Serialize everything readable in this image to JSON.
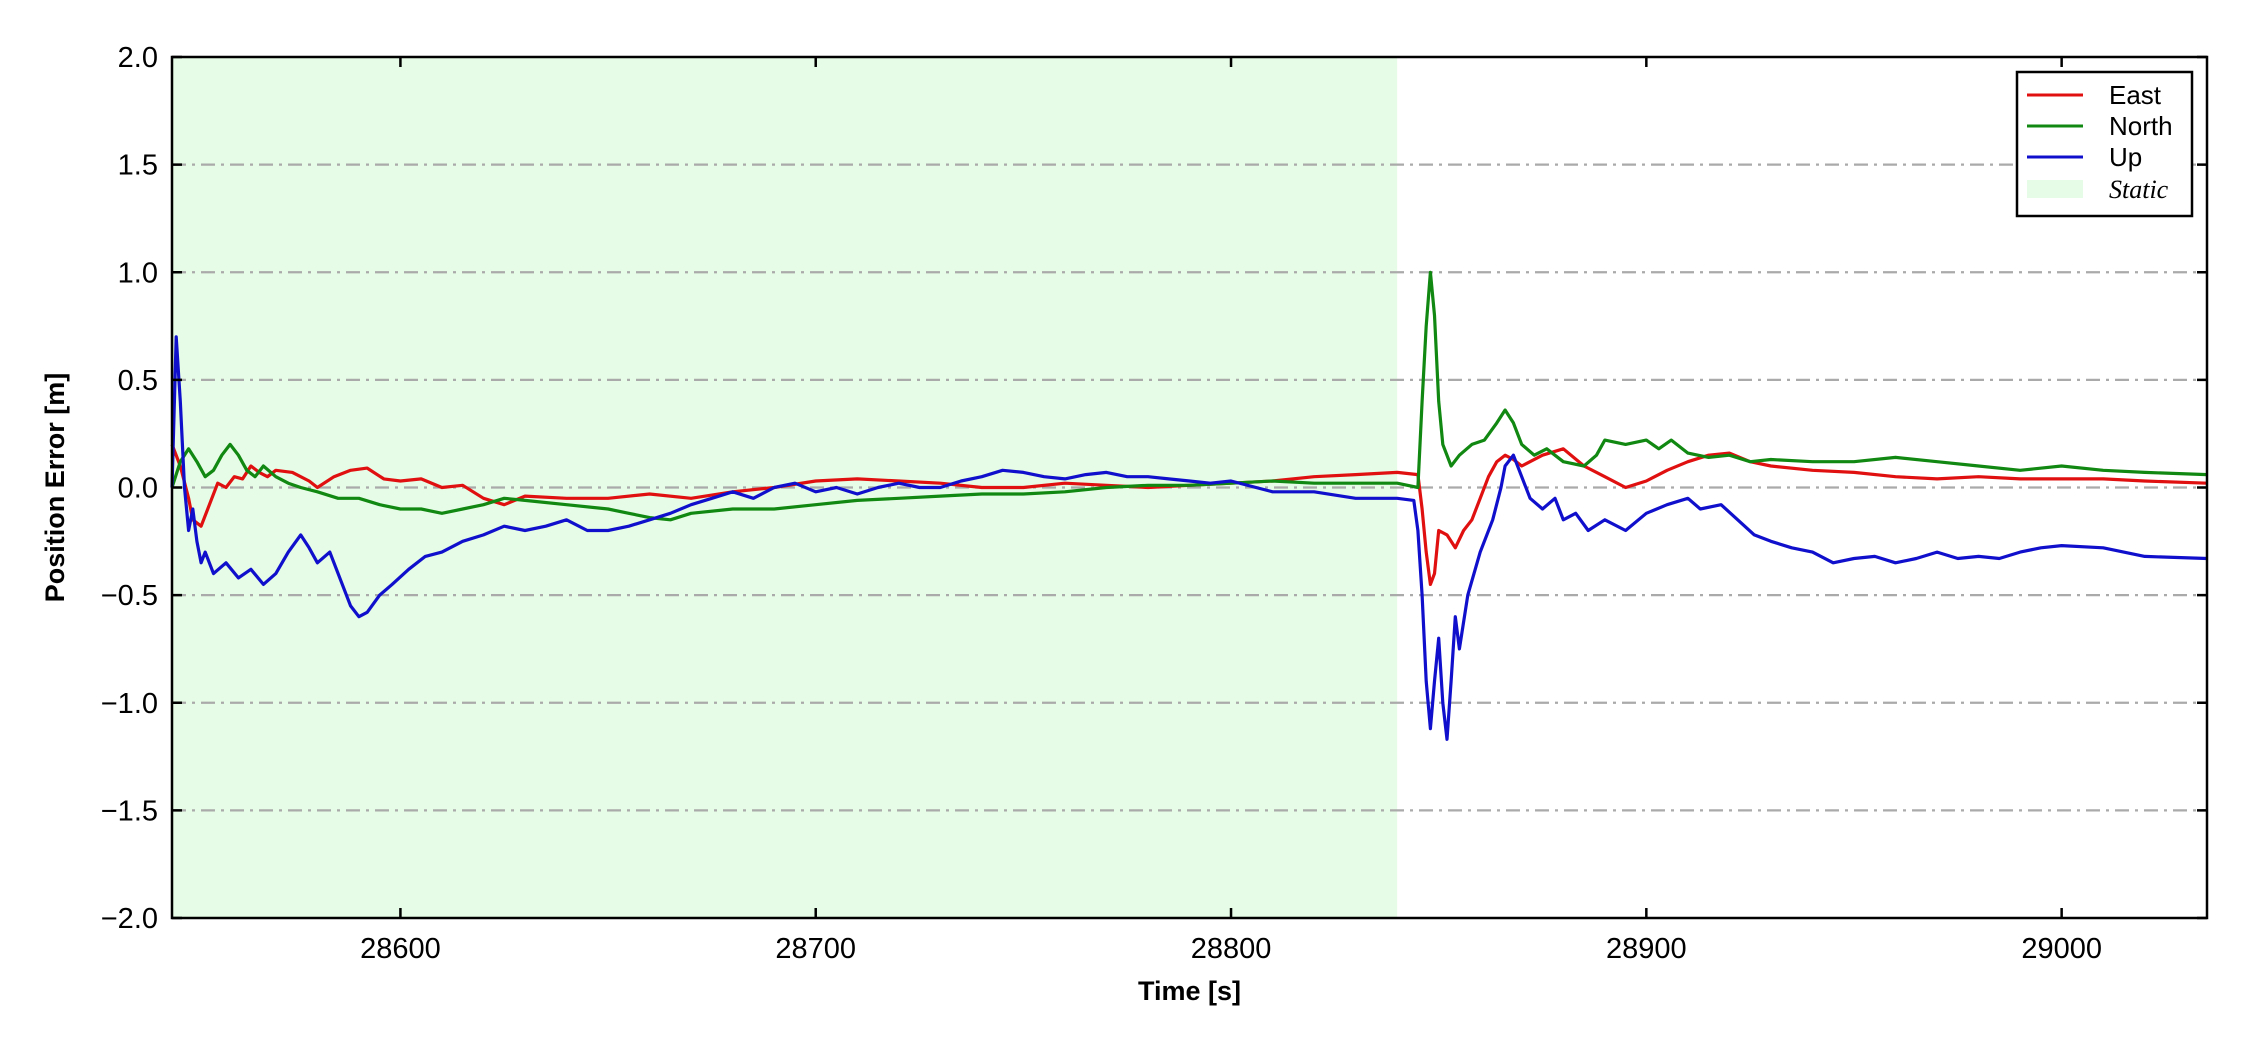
{
  "chart_data": {
    "type": "line",
    "xlabel": "Time [s]",
    "ylabel": "Position Error [m]",
    "xlim": [
      28545,
      29035
    ],
    "ylim": [
      -2.0,
      2.0
    ],
    "x_ticks": [
      28600,
      28700,
      28800,
      28900,
      29000
    ],
    "x_tick_labels": [
      "28600",
      "28700",
      "28800",
      "28900",
      "29000"
    ],
    "y_ticks": [
      -2.0,
      -1.5,
      -1.0,
      -0.5,
      0.0,
      0.5,
      1.0,
      1.5,
      2.0
    ],
    "y_tick_labels": [
      "−2.0",
      "−1.5",
      "−1.0",
      "−0.5",
      "0.0",
      "0.5",
      "1.0",
      "1.5",
      "2.0"
    ],
    "grid": "horizontal dash-dot",
    "legend_position": "top-right",
    "shaded_region": {
      "name": "Static",
      "x_range": [
        28545,
        28840
      ],
      "color": "#e6fce6"
    },
    "series": [
      {
        "name": "East",
        "color": "#e01010",
        "points": [
          [
            28545,
            0.2
          ],
          [
            28547,
            0.1
          ],
          [
            28549,
            -0.05
          ],
          [
            28550,
            -0.15
          ],
          [
            28552,
            -0.18
          ],
          [
            28554,
            -0.08
          ],
          [
            28556,
            0.02
          ],
          [
            28558,
            0.0
          ],
          [
            28560,
            0.05
          ],
          [
            28562,
            0.04
          ],
          [
            28564,
            0.1
          ],
          [
            28566,
            0.07
          ],
          [
            28568,
            0.05
          ],
          [
            28570,
            0.08
          ],
          [
            28574,
            0.07
          ],
          [
            28578,
            0.03
          ],
          [
            28580,
            0.0
          ],
          [
            28584,
            0.05
          ],
          [
            28588,
            0.08
          ],
          [
            28592,
            0.09
          ],
          [
            28596,
            0.04
          ],
          [
            28600,
            0.03
          ],
          [
            28605,
            0.04
          ],
          [
            28610,
            0.0
          ],
          [
            28615,
            0.01
          ],
          [
            28620,
            -0.05
          ],
          [
            28625,
            -0.08
          ],
          [
            28630,
            -0.04
          ],
          [
            28640,
            -0.05
          ],
          [
            28650,
            -0.05
          ],
          [
            28660,
            -0.03
          ],
          [
            28670,
            -0.05
          ],
          [
            28680,
            -0.02
          ],
          [
            28690,
            0.0
          ],
          [
            28700,
            0.03
          ],
          [
            28710,
            0.04
          ],
          [
            28720,
            0.03
          ],
          [
            28730,
            0.02
          ],
          [
            28740,
            0.0
          ],
          [
            28750,
            0.0
          ],
          [
            28760,
            0.02
          ],
          [
            28770,
            0.01
          ],
          [
            28780,
            0.0
          ],
          [
            28790,
            0.01
          ],
          [
            28800,
            0.02
          ],
          [
            28810,
            0.03
          ],
          [
            28820,
            0.05
          ],
          [
            28830,
            0.06
          ],
          [
            28840,
            0.07
          ],
          [
            28845,
            0.06
          ],
          [
            28846,
            -0.1
          ],
          [
            28847,
            -0.3
          ],
          [
            28848,
            -0.45
          ],
          [
            28849,
            -0.4
          ],
          [
            28850,
            -0.2
          ],
          [
            28852,
            -0.22
          ],
          [
            28854,
            -0.28
          ],
          [
            28856,
            -0.2
          ],
          [
            28858,
            -0.15
          ],
          [
            28860,
            -0.05
          ],
          [
            28862,
            0.05
          ],
          [
            28864,
            0.12
          ],
          [
            28866,
            0.15
          ],
          [
            28868,
            0.13
          ],
          [
            28870,
            0.1
          ],
          [
            28875,
            0.15
          ],
          [
            28880,
            0.18
          ],
          [
            28885,
            0.1
          ],
          [
            28890,
            0.05
          ],
          [
            28895,
            0.0
          ],
          [
            28900,
            0.03
          ],
          [
            28905,
            0.08
          ],
          [
            28910,
            0.12
          ],
          [
            28915,
            0.15
          ],
          [
            28920,
            0.16
          ],
          [
            28925,
            0.12
          ],
          [
            28930,
            0.1
          ],
          [
            28940,
            0.08
          ],
          [
            28950,
            0.07
          ],
          [
            28960,
            0.05
          ],
          [
            28970,
            0.04
          ],
          [
            28980,
            0.05
          ],
          [
            28990,
            0.04
          ],
          [
            29000,
            0.04
          ],
          [
            29010,
            0.04
          ],
          [
            29020,
            0.03
          ],
          [
            29035,
            0.02
          ]
        ]
      },
      {
        "name": "North",
        "color": "#118811",
        "points": [
          [
            28545,
            0.0
          ],
          [
            28547,
            0.12
          ],
          [
            28549,
            0.18
          ],
          [
            28551,
            0.12
          ],
          [
            28553,
            0.05
          ],
          [
            28555,
            0.08
          ],
          [
            28557,
            0.15
          ],
          [
            28559,
            0.2
          ],
          [
            28561,
            0.15
          ],
          [
            28563,
            0.08
          ],
          [
            28565,
            0.05
          ],
          [
            28567,
            0.1
          ],
          [
            28570,
            0.05
          ],
          [
            28573,
            0.02
          ],
          [
            28576,
            0.0
          ],
          [
            28580,
            -0.02
          ],
          [
            28585,
            -0.05
          ],
          [
            28590,
            -0.05
          ],
          [
            28595,
            -0.08
          ],
          [
            28600,
            -0.1
          ],
          [
            28605,
            -0.1
          ],
          [
            28610,
            -0.12
          ],
          [
            28615,
            -0.1
          ],
          [
            28620,
            -0.08
          ],
          [
            28625,
            -0.05
          ],
          [
            28630,
            -0.06
          ],
          [
            28640,
            -0.08
          ],
          [
            28650,
            -0.1
          ],
          [
            28655,
            -0.12
          ],
          [
            28660,
            -0.14
          ],
          [
            28665,
            -0.15
          ],
          [
            28670,
            -0.12
          ],
          [
            28680,
            -0.1
          ],
          [
            28690,
            -0.1
          ],
          [
            28700,
            -0.08
          ],
          [
            28710,
            -0.06
          ],
          [
            28720,
            -0.05
          ],
          [
            28730,
            -0.04
          ],
          [
            28740,
            -0.03
          ],
          [
            28750,
            -0.03
          ],
          [
            28760,
            -0.02
          ],
          [
            28770,
            0.0
          ],
          [
            28780,
            0.01
          ],
          [
            28790,
            0.01
          ],
          [
            28800,
            0.02
          ],
          [
            28810,
            0.03
          ],
          [
            28820,
            0.02
          ],
          [
            28830,
            0.02
          ],
          [
            28840,
            0.02
          ],
          [
            28845,
            0.0
          ],
          [
            28846,
            0.4
          ],
          [
            28847,
            0.75
          ],
          [
            28848,
            1.0
          ],
          [
            28849,
            0.8
          ],
          [
            28850,
            0.4
          ],
          [
            28851,
            0.2
          ],
          [
            28853,
            0.1
          ],
          [
            28855,
            0.15
          ],
          [
            28858,
            0.2
          ],
          [
            28861,
            0.22
          ],
          [
            28864,
            0.3
          ],
          [
            28866,
            0.36
          ],
          [
            28868,
            0.3
          ],
          [
            28870,
            0.2
          ],
          [
            28873,
            0.15
          ],
          [
            28876,
            0.18
          ],
          [
            28880,
            0.12
          ],
          [
            28885,
            0.1
          ],
          [
            28888,
            0.15
          ],
          [
            28890,
            0.22
          ],
          [
            28895,
            0.2
          ],
          [
            28900,
            0.22
          ],
          [
            28903,
            0.18
          ],
          [
            28906,
            0.22
          ],
          [
            28910,
            0.16
          ],
          [
            28915,
            0.14
          ],
          [
            28920,
            0.15
          ],
          [
            28925,
            0.12
          ],
          [
            28930,
            0.13
          ],
          [
            28940,
            0.12
          ],
          [
            28950,
            0.12
          ],
          [
            28960,
            0.14
          ],
          [
            28970,
            0.12
          ],
          [
            28980,
            0.1
          ],
          [
            28990,
            0.08
          ],
          [
            29000,
            0.1
          ],
          [
            29010,
            0.08
          ],
          [
            29020,
            0.07
          ],
          [
            29035,
            0.06
          ]
        ]
      },
      {
        "name": "Up",
        "color": "#1010cc",
        "points": [
          [
            28545,
            0.0
          ],
          [
            28546,
            0.7
          ],
          [
            28547,
            0.4
          ],
          [
            28548,
            0.0
          ],
          [
            28549,
            -0.2
          ],
          [
            28550,
            -0.1
          ],
          [
            28551,
            -0.25
          ],
          [
            28552,
            -0.35
          ],
          [
            28553,
            -0.3
          ],
          [
            28555,
            -0.4
          ],
          [
            28558,
            -0.35
          ],
          [
            28561,
            -0.42
          ],
          [
            28564,
            -0.38
          ],
          [
            28567,
            -0.45
          ],
          [
            28570,
            -0.4
          ],
          [
            28573,
            -0.3
          ],
          [
            28576,
            -0.22
          ],
          [
            28578,
            -0.28
          ],
          [
            28580,
            -0.35
          ],
          [
            28583,
            -0.3
          ],
          [
            28586,
            -0.45
          ],
          [
            28588,
            -0.55
          ],
          [
            28590,
            -0.6
          ],
          [
            28592,
            -0.58
          ],
          [
            28595,
            -0.5
          ],
          [
            28598,
            -0.45
          ],
          [
            28602,
            -0.38
          ],
          [
            28606,
            -0.32
          ],
          [
            28610,
            -0.3
          ],
          [
            28615,
            -0.25
          ],
          [
            28620,
            -0.22
          ],
          [
            28625,
            -0.18
          ],
          [
            28630,
            -0.2
          ],
          [
            28635,
            -0.18
          ],
          [
            28640,
            -0.15
          ],
          [
            28645,
            -0.2
          ],
          [
            28650,
            -0.2
          ],
          [
            28655,
            -0.18
          ],
          [
            28660,
            -0.15
          ],
          [
            28665,
            -0.12
          ],
          [
            28670,
            -0.08
          ],
          [
            28675,
            -0.05
          ],
          [
            28680,
            -0.02
          ],
          [
            28685,
            -0.05
          ],
          [
            28690,
            0.0
          ],
          [
            28695,
            0.02
          ],
          [
            28700,
            -0.02
          ],
          [
            28705,
            0.0
          ],
          [
            28710,
            -0.03
          ],
          [
            28715,
            0.0
          ],
          [
            28720,
            0.02
          ],
          [
            28725,
            0.0
          ],
          [
            28730,
            0.0
          ],
          [
            28735,
            0.03
          ],
          [
            28740,
            0.05
          ],
          [
            28745,
            0.08
          ],
          [
            28750,
            0.07
          ],
          [
            28755,
            0.05
          ],
          [
            28760,
            0.04
          ],
          [
            28765,
            0.06
          ],
          [
            28770,
            0.07
          ],
          [
            28775,
            0.05
          ],
          [
            28780,
            0.05
          ],
          [
            28785,
            0.04
          ],
          [
            28790,
            0.03
          ],
          [
            28795,
            0.02
          ],
          [
            28800,
            0.03
          ],
          [
            28810,
            -0.02
          ],
          [
            28820,
            -0.02
          ],
          [
            28830,
            -0.05
          ],
          [
            28840,
            -0.05
          ],
          [
            28844,
            -0.06
          ],
          [
            28845,
            -0.2
          ],
          [
            28846,
            -0.5
          ],
          [
            28847,
            -0.9
          ],
          [
            28848,
            -1.12
          ],
          [
            28849,
            -0.9
          ],
          [
            28850,
            -0.7
          ],
          [
            28851,
            -1.0
          ],
          [
            28852,
            -1.17
          ],
          [
            28853,
            -0.9
          ],
          [
            28854,
            -0.6
          ],
          [
            28855,
            -0.75
          ],
          [
            28857,
            -0.5
          ],
          [
            28860,
            -0.3
          ],
          [
            28863,
            -0.15
          ],
          [
            28865,
            0.0
          ],
          [
            28866,
            0.1
          ],
          [
            28868,
            0.15
          ],
          [
            28870,
            0.05
          ],
          [
            28872,
            -0.05
          ],
          [
            28875,
            -0.1
          ],
          [
            28878,
            -0.05
          ],
          [
            28880,
            -0.15
          ],
          [
            28883,
            -0.12
          ],
          [
            28886,
            -0.2
          ],
          [
            28890,
            -0.15
          ],
          [
            28895,
            -0.2
          ],
          [
            28900,
            -0.12
          ],
          [
            28905,
            -0.08
          ],
          [
            28910,
            -0.05
          ],
          [
            28913,
            -0.1
          ],
          [
            28918,
            -0.08
          ],
          [
            28922,
            -0.15
          ],
          [
            28926,
            -0.22
          ],
          [
            28930,
            -0.25
          ],
          [
            28935,
            -0.28
          ],
          [
            28940,
            -0.3
          ],
          [
            28945,
            -0.35
          ],
          [
            28950,
            -0.33
          ],
          [
            28955,
            -0.32
          ],
          [
            28960,
            -0.35
          ],
          [
            28965,
            -0.33
          ],
          [
            28970,
            -0.3
          ],
          [
            28975,
            -0.33
          ],
          [
            28980,
            -0.32
          ],
          [
            28985,
            -0.33
          ],
          [
            28990,
            -0.3
          ],
          [
            28995,
            -0.28
          ],
          [
            29000,
            -0.27
          ],
          [
            29010,
            -0.28
          ],
          [
            29020,
            -0.32
          ],
          [
            29035,
            -0.33
          ]
        ]
      }
    ]
  }
}
